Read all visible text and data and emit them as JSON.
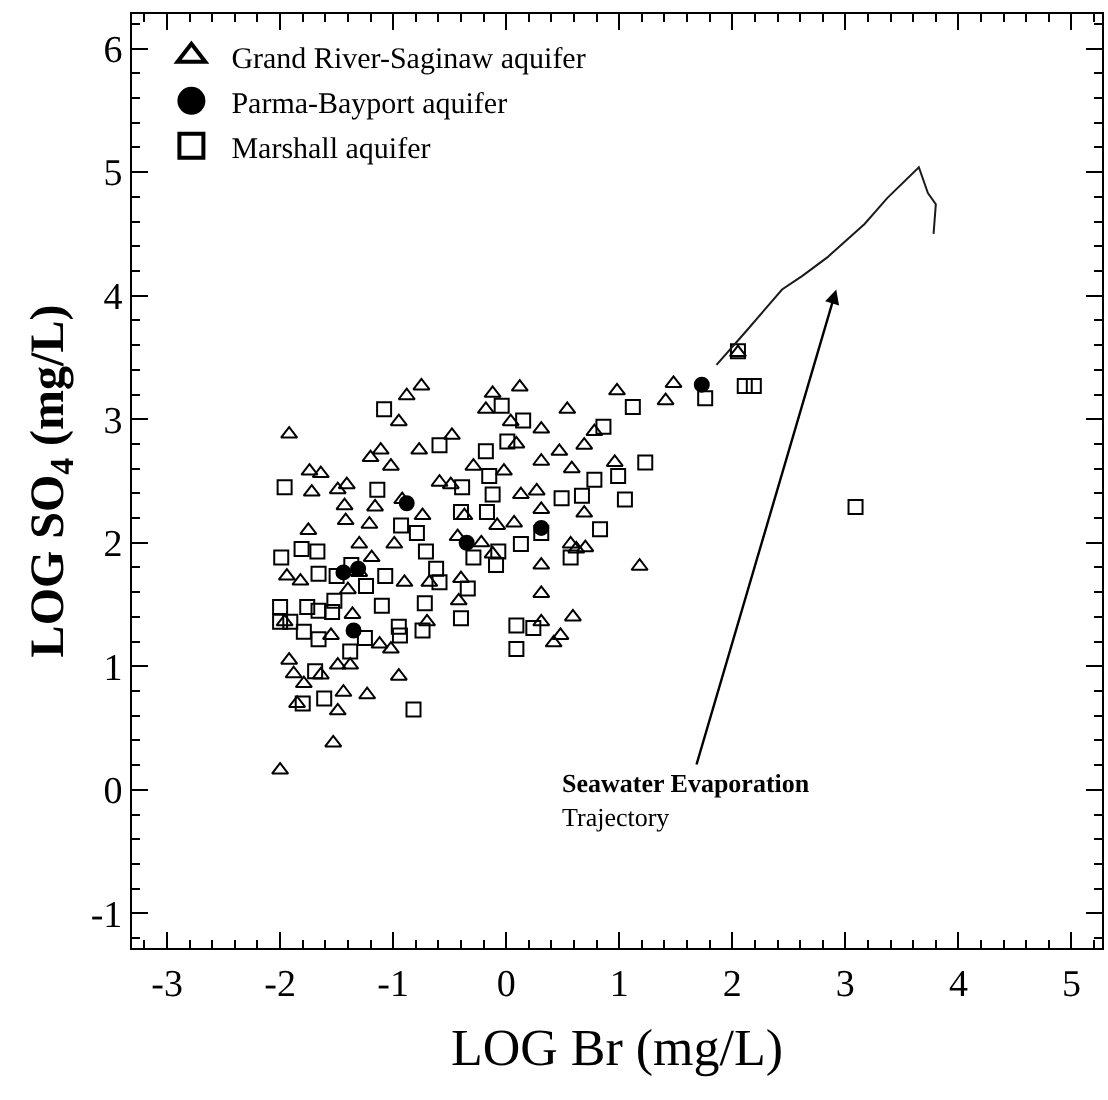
{
  "chart_data": {
    "type": "scatter",
    "xlabel": "LOG Br (mg/L)",
    "ylabel": "LOG SO$_{4}$ (mg/L)",
    "xlim": [
      -3.31,
      5.27
    ],
    "ylim": [
      -1.28,
      6.28
    ],
    "xticks": [
      -3,
      -2,
      -1,
      0,
      1,
      2,
      3,
      4,
      5
    ],
    "yticks": [
      -1,
      0,
      1,
      2,
      3,
      4,
      5,
      6
    ],
    "legend": "top left",
    "series": [
      {
        "name": "Grand River-Saginaw aquifer",
        "color": "#000000",
        "marker": "triangle",
        "x": [
          -2.0,
          -1.53,
          -1.92,
          -1.74,
          -1.64,
          -1.72,
          -1.49,
          -1.41,
          -1.43,
          -1.42,
          -1.75,
          -1.94,
          -1.82,
          -1.92,
          -1.88,
          -1.85,
          -1.79,
          -1.64,
          -1.44,
          -1.49,
          -1.23,
          -1.49,
          -1.38,
          -0.95,
          -1.02,
          -1.12,
          -1.2,
          -1.11,
          -1.16,
          -1.21,
          -1.02,
          -0.95,
          -0.88,
          -0.75,
          -0.77,
          -0.48,
          -0.74,
          -0.92,
          -0.59,
          -0.49,
          -1.3,
          -1.3,
          -1.19,
          -0.99,
          -0.9,
          -0.68,
          -0.7,
          -0.42,
          -0.43,
          -0.29,
          -0.12,
          -0.18,
          0.12,
          0.04,
          -0.02,
          0.09,
          0.27,
          0.31,
          0.31,
          0.31,
          0.47,
          0.54,
          0.58,
          0.69,
          0.78,
          0.69,
          0.57,
          0.62,
          0.7,
          0.31,
          0.31,
          0.31,
          0.48,
          0.42,
          0.59,
          0.98,
          0.96,
          1.18,
          1.41,
          1.48,
          2.05,
          0.13,
          -0.37,
          -0.22,
          -0.08,
          0.07,
          -0.12,
          -0.4,
          -1.4,
          -1.36,
          -1.55,
          -1.96
        ],
        "values": [
          0.16,
          0.38,
          2.88,
          2.58,
          2.56,
          2.41,
          2.43,
          2.47,
          2.3,
          2.18,
          2.1,
          1.73,
          1.69,
          1.05,
          0.94,
          0.7,
          0.86,
          0.93,
          0.79,
          0.64,
          0.77,
          1.01,
          1.01,
          0.92,
          1.14,
          1.18,
          2.69,
          2.75,
          2.29,
          2.15,
          2.62,
          2.98,
          3.19,
          3.27,
          2.75,
          2.87,
          2.22,
          2.35,
          2.49,
          2.47,
          1.76,
          1.99,
          1.88,
          1.99,
          1.68,
          1.68,
          1.36,
          1.53,
          2.05,
          2.62,
          3.21,
          3.08,
          3.26,
          2.98,
          2.58,
          2.8,
          2.42,
          2.92,
          2.66,
          2.27,
          2.74,
          3.08,
          2.6,
          2.79,
          2.9,
          2.24,
          1.99,
          1.95,
          1.96,
          1.82,
          1.59,
          1.36,
          1.25,
          1.19,
          1.4,
          3.23,
          2.65,
          1.81,
          3.15,
          3.29,
          3.54,
          2.39,
          2.22,
          2.0,
          2.14,
          2.16,
          1.91,
          1.71,
          1.62,
          1.42,
          1.25,
          1.36
        ]
      },
      {
        "name": "Parma-Bayport aquifer",
        "color": "#000000",
        "marker": "circle",
        "x": [
          1.73,
          -0.88,
          -0.35,
          -1.35,
          -1.31,
          0.31,
          -1.44
        ],
        "values": [
          3.28,
          2.32,
          2.0,
          1.29,
          1.79,
          2.12,
          1.76
        ]
      },
      {
        "name": "Marshall aquifer",
        "color": "#000000",
        "marker": "square",
        "x": [
          -1.96,
          -1.99,
          -1.81,
          -1.67,
          -2.0,
          -2.0,
          -1.91,
          -1.79,
          -1.76,
          -1.66,
          -1.54,
          -1.66,
          -1.5,
          -1.66,
          -1.69,
          -1.8,
          -1.61,
          -1.38,
          -1.25,
          -1.52,
          -1.37,
          -1.24,
          -1.1,
          -1.07,
          -0.95,
          -0.94,
          -0.82,
          -1.08,
          -1.14,
          -0.93,
          -0.79,
          -0.71,
          -0.62,
          -0.72,
          -0.74,
          -0.59,
          -0.59,
          -0.39,
          -0.4,
          -0.4,
          -0.34,
          -0.29,
          -0.17,
          -0.18,
          -0.15,
          -0.12,
          -0.09,
          -0.07,
          -0.04,
          0.01,
          0.15,
          0.13,
          0.09,
          0.09,
          0.24,
          0.31,
          0.49,
          0.57,
          0.67,
          0.78,
          0.83,
          0.86,
          0.99,
          1.05,
          1.23,
          1.12,
          1.76,
          2.05,
          2.11,
          2.19,
          3.09
        ],
        "values": [
          2.45,
          1.88,
          1.95,
          1.93,
          1.48,
          1.36,
          1.36,
          1.28,
          1.48,
          1.45,
          1.44,
          1.75,
          1.73,
          1.22,
          0.96,
          0.7,
          0.74,
          1.12,
          1.23,
          1.53,
          1.82,
          1.65,
          1.49,
          1.73,
          1.32,
          1.25,
          0.65,
          3.08,
          2.43,
          2.14,
          2.08,
          1.93,
          1.79,
          1.51,
          1.29,
          1.68,
          2.79,
          2.45,
          2.25,
          1.39,
          1.63,
          1.88,
          2.25,
          2.74,
          2.54,
          2.39,
          1.82,
          1.93,
          3.11,
          2.82,
          2.99,
          1.99,
          1.33,
          1.14,
          1.31,
          2.08,
          2.36,
          1.88,
          2.38,
          2.51,
          2.11,
          2.94,
          2.54,
          2.35,
          2.65,
          3.1,
          3.17,
          3.55,
          3.27,
          3.27,
          2.29
        ]
      },
      {
        "type": "line",
        "color": "#1a1a1a",
        "marker": "none",
        "x": [
          1.86,
          2.12,
          2.44,
          2.62,
          2.84,
          3.17,
          3.37,
          3.65,
          3.73,
          3.8,
          3.78
        ],
        "values": [
          3.44,
          3.71,
          4.05,
          4.16,
          4.31,
          4.58,
          4.79,
          5.04,
          4.83,
          4.74,
          4.5
        ]
      }
    ],
    "annotations": [
      "Seawater Evaporation\nTrajectory"
    ]
  }
}
